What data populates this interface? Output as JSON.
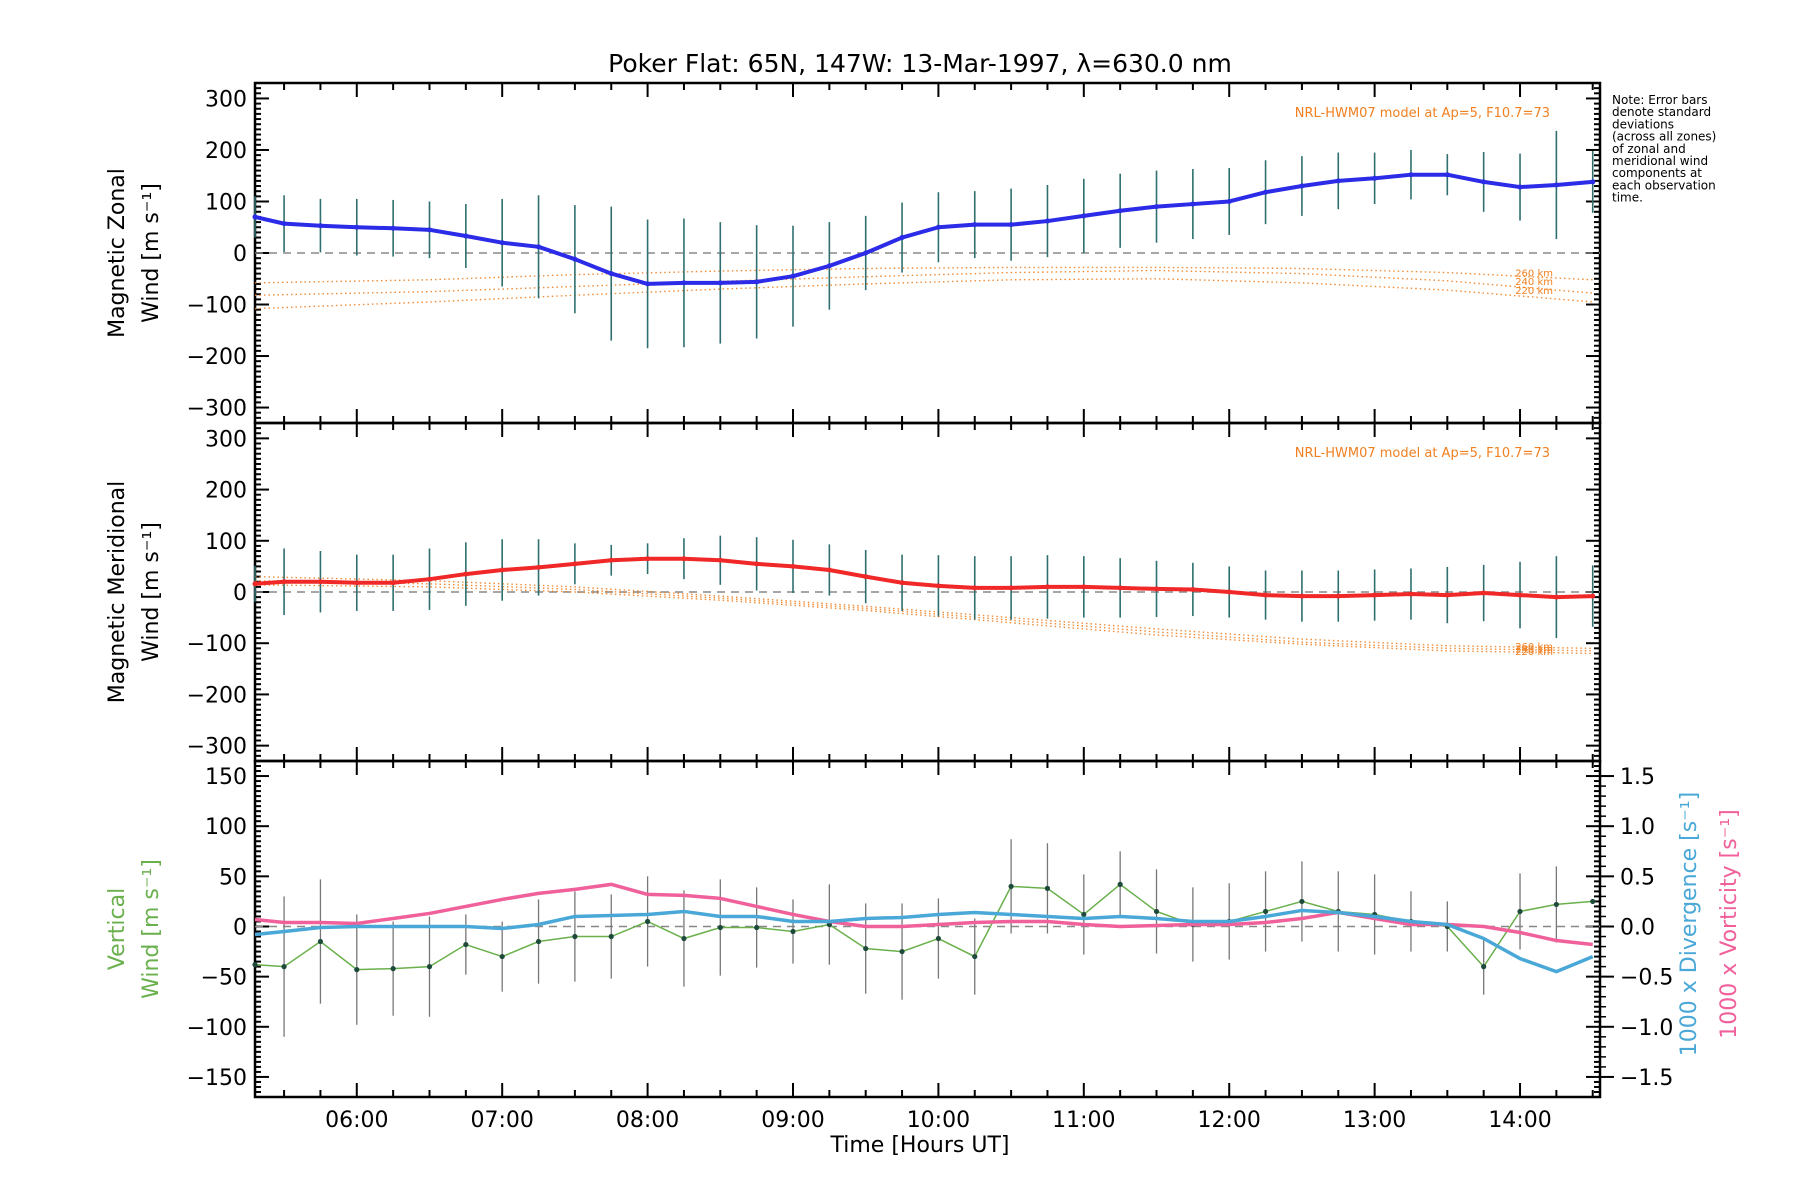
{
  "title": "Poker Flat: 65N, 147W: 13-Mar-1997, λ=630.0 nm",
  "note": [
    "Note: Error bars",
    "denote standard",
    "deviations",
    "(across all zones)",
    "of zonal and",
    "meridional wind",
    "components at",
    "each observation",
    "time."
  ],
  "colors": {
    "zonal": "#2b2be8",
    "meridional": "#f02828",
    "vertical": "#6ab04c",
    "divergence": "#4aa8d8",
    "vorticity": "#f0609a",
    "model": "#f08020",
    "errorbar": "#2f6f6f",
    "zero": "#888888"
  },
  "chart_data": [
    {
      "type": "line",
      "panel": "zonal",
      "ylabel_line1": "Magnetic Zonal",
      "ylabel_line2": "Wind [m s⁻¹]",
      "ylim": [
        -330,
        330
      ],
      "yticks": [
        -300,
        -200,
        -100,
        0,
        100,
        200,
        300
      ],
      "xlim": [
        5.3,
        14.55
      ],
      "model_label": "NRL-HWM07 model at Ap=5, F10.7=73",
      "model_alt_labels": [
        "260 km",
        "240 km",
        "220 km"
      ],
      "x": [
        5.3,
        5.5,
        5.75,
        6.0,
        6.25,
        6.5,
        6.75,
        7.0,
        7.25,
        7.5,
        7.75,
        8.0,
        8.25,
        8.5,
        8.75,
        9.0,
        9.25,
        9.5,
        9.75,
        10.0,
        10.25,
        10.5,
        10.75,
        11.0,
        11.25,
        11.5,
        11.75,
        12.0,
        12.25,
        12.5,
        12.75,
        13.0,
        13.25,
        13.5,
        13.75,
        14.0,
        14.25,
        14.5
      ],
      "values": [
        70,
        57,
        53,
        50,
        48,
        45,
        33,
        20,
        12,
        -12,
        -40,
        -60,
        -58,
        -58,
        -56,
        -45,
        -25,
        0,
        30,
        50,
        55,
        55,
        62,
        72,
        82,
        90,
        95,
        100,
        118,
        130,
        140,
        145,
        152,
        152,
        138,
        128,
        132,
        138
      ],
      "err": [
        40,
        55,
        52,
        55,
        55,
        55,
        62,
        85,
        100,
        105,
        130,
        125,
        125,
        118,
        110,
        98,
        85,
        72,
        68,
        68,
        65,
        70,
        70,
        72,
        72,
        70,
        68,
        65,
        62,
        58,
        55,
        50,
        48,
        40,
        58,
        65,
        105,
        60
      ],
      "model": [
        {
          "x": [
            5.3,
            6.5,
            7.5,
            8.5,
            9.5,
            10.5,
            11.5,
            12.5,
            13.5,
            14.5
          ],
          "values": [
            -58,
            -52,
            -42,
            -35,
            -30,
            -28,
            -28,
            -30,
            -38,
            -52
          ]
        },
        {
          "x": [
            5.3,
            6.5,
            7.5,
            8.5,
            9.5,
            10.5,
            11.5,
            12.5,
            13.5,
            14.5
          ],
          "values": [
            -82,
            -75,
            -65,
            -55,
            -46,
            -38,
            -34,
            -40,
            -54,
            -78
          ]
        },
        {
          "x": [
            5.3,
            6.5,
            7.5,
            8.5,
            9.5,
            10.5,
            11.5,
            12.5,
            13.5,
            14.5
          ],
          "values": [
            -108,
            -95,
            -82,
            -70,
            -60,
            -52,
            -50,
            -58,
            -72,
            -95
          ]
        }
      ]
    },
    {
      "type": "line",
      "panel": "meridional",
      "ylabel_line1": "Magnetic Meridional",
      "ylabel_line2": "Wind [m s⁻¹]",
      "ylim": [
        -330,
        330
      ],
      "yticks": [
        -300,
        -200,
        -100,
        0,
        100,
        200,
        300
      ],
      "xlim": [
        5.3,
        14.55
      ],
      "model_label": "NRL-HWM07 model at Ap=5, F10.7=73",
      "model_alt_labels": [
        "260 km",
        "240 km",
        "220 km"
      ],
      "x": [
        5.3,
        5.5,
        5.75,
        6.0,
        6.25,
        6.5,
        6.75,
        7.0,
        7.25,
        7.5,
        7.75,
        8.0,
        8.25,
        8.5,
        8.75,
        9.0,
        9.25,
        9.5,
        9.75,
        10.0,
        10.25,
        10.5,
        10.75,
        11.0,
        11.25,
        11.5,
        11.75,
        12.0,
        12.25,
        12.5,
        12.75,
        13.0,
        13.25,
        13.5,
        13.75,
        14.0,
        14.25,
        14.5
      ],
      "values": [
        16,
        20,
        20,
        18,
        18,
        25,
        35,
        43,
        48,
        55,
        62,
        65,
        65,
        62,
        55,
        50,
        43,
        30,
        18,
        12,
        8,
        8,
        10,
        10,
        8,
        6,
        5,
        0,
        -6,
        -8,
        -8,
        -6,
        -4,
        -6,
        -2,
        -6,
        -10,
        -8
      ],
      "err": [
        35,
        65,
        60,
        55,
        55,
        60,
        62,
        60,
        55,
        40,
        30,
        30,
        40,
        48,
        52,
        52,
        50,
        52,
        55,
        60,
        62,
        62,
        62,
        60,
        58,
        55,
        52,
        50,
        48,
        50,
        50,
        50,
        50,
        55,
        55,
        65,
        80,
        60
      ],
      "model": [
        {
          "x": [
            5.3,
            6.5,
            7.5,
            8.5,
            9.5,
            10.5,
            11.5,
            12.5,
            13.5,
            14.5
          ],
          "values": [
            30,
            22,
            10,
            -8,
            -28,
            -50,
            -72,
            -92,
            -105,
            -110
          ]
        },
        {
          "x": [
            5.3,
            6.5,
            7.5,
            8.5,
            9.5,
            10.5,
            11.5,
            12.5,
            13.5,
            14.5
          ],
          "values": [
            22,
            16,
            5,
            -12,
            -32,
            -55,
            -78,
            -98,
            -110,
            -115
          ]
        },
        {
          "x": [
            5.3,
            6.5,
            7.5,
            8.5,
            9.5,
            10.5,
            11.5,
            12.5,
            13.5,
            14.5
          ],
          "values": [
            14,
            10,
            0,
            -16,
            -36,
            -60,
            -84,
            -102,
            -115,
            -120
          ]
        }
      ]
    },
    {
      "type": "line",
      "panel": "vertical",
      "ylabel_line1": "Vertical",
      "ylabel_line2": "Wind [m s⁻¹]",
      "ylim": [
        -170,
        165
      ],
      "yticks": [
        -150,
        -100,
        -50,
        0,
        50,
        100,
        150
      ],
      "y2lim": [
        -1.7,
        1.65
      ],
      "y2ticks": [
        -1.5,
        -1.0,
        -0.5,
        0.0,
        0.5,
        1.0,
        1.5
      ],
      "y2ticklabels": [
        "−1.5",
        "−1.0",
        "−0.5",
        "0.0",
        "0.5",
        "1.0",
        "1.5"
      ],
      "y2label_divergence": "1000 x Divergence [s⁻¹]",
      "y2label_vorticity": "1000 x Vorticity [s⁻¹]",
      "xlim": [
        5.3,
        14.55
      ],
      "xticks": [
        6,
        7,
        8,
        9,
        10,
        11,
        12,
        13,
        14
      ],
      "xticklabels": [
        "06:00",
        "07:00",
        "08:00",
        "09:00",
        "10:00",
        "11:00",
        "12:00",
        "13:00",
        "14:00"
      ],
      "xlabel": "Time [Hours UT]",
      "series": [
        {
          "name": "Vertical wind",
          "x": [
            5.3,
            5.5,
            5.75,
            6.0,
            6.25,
            6.5,
            6.75,
            7.0,
            7.25,
            7.5,
            7.75,
            8.0,
            8.25,
            8.5,
            8.75,
            9.0,
            9.25,
            9.5,
            9.75,
            10.0,
            10.25,
            10.5,
            10.75,
            11.0,
            11.25,
            11.5,
            11.75,
            12.0,
            12.25,
            12.5,
            12.75,
            13.0,
            13.25,
            13.5,
            13.75,
            14.0,
            14.25,
            14.5
          ],
          "values": [
            -38,
            -40,
            -15,
            -43,
            -42,
            -40,
            -18,
            -30,
            -15,
            -10,
            -10,
            5,
            -12,
            -1,
            -1,
            -5,
            2,
            -22,
            -25,
            -12,
            -30,
            40,
            38,
            12,
            42,
            15,
            2,
            5,
            15,
            25,
            15,
            12,
            5,
            0,
            -40,
            15,
            22,
            25
          ],
          "err": [
            0,
            70,
            62,
            55,
            47,
            50,
            30,
            35,
            42,
            45,
            42,
            45,
            48,
            48,
            40,
            32,
            40,
            45,
            48,
            40,
            38,
            47,
            45,
            40,
            33,
            42,
            37,
            38,
            40,
            40,
            40,
            40,
            30,
            25,
            28,
            38,
            38,
            0
          ]
        },
        {
          "name": "1000 x Divergence",
          "axis": "right",
          "x": [
            5.3,
            5.5,
            5.75,
            6.0,
            6.25,
            6.5,
            6.75,
            7.0,
            7.25,
            7.5,
            7.75,
            8.0,
            8.25,
            8.5,
            8.75,
            9.0,
            9.25,
            9.5,
            9.75,
            10.0,
            10.25,
            10.5,
            10.75,
            11.0,
            11.25,
            11.5,
            11.75,
            12.0,
            12.25,
            12.5,
            12.75,
            13.0,
            13.25,
            13.5,
            13.75,
            14.0,
            14.25,
            14.5
          ],
          "values": [
            -0.08,
            -0.05,
            -0.01,
            0.0,
            0.0,
            0.0,
            0.0,
            -0.02,
            0.02,
            0.1,
            0.11,
            0.12,
            0.15,
            0.1,
            0.1,
            0.05,
            0.05,
            0.08,
            0.09,
            0.12,
            0.14,
            0.12,
            0.1,
            0.08,
            0.1,
            0.08,
            0.05,
            0.05,
            0.1,
            0.16,
            0.14,
            0.1,
            0.05,
            0.02,
            -0.12,
            -0.32,
            -0.45,
            -0.3
          ]
        },
        {
          "name": "1000 x Vorticity",
          "axis": "right",
          "x": [
            5.3,
            5.5,
            5.75,
            6.0,
            6.25,
            6.5,
            6.75,
            7.0,
            7.25,
            7.5,
            7.75,
            8.0,
            8.25,
            8.5,
            8.75,
            9.0,
            9.25,
            9.5,
            9.75,
            10.0,
            10.25,
            10.5,
            10.75,
            11.0,
            11.25,
            11.5,
            11.75,
            12.0,
            12.25,
            12.5,
            12.75,
            13.0,
            13.25,
            13.5,
            13.75,
            14.0,
            14.25,
            14.5
          ],
          "values": [
            0.07,
            0.04,
            0.04,
            0.03,
            0.08,
            0.13,
            0.2,
            0.27,
            0.33,
            0.37,
            0.42,
            0.32,
            0.31,
            0.28,
            0.2,
            0.12,
            0.05,
            0.0,
            0.0,
            0.02,
            0.04,
            0.05,
            0.05,
            0.02,
            0.0,
            0.01,
            0.02,
            0.02,
            0.04,
            0.08,
            0.14,
            0.08,
            0.02,
            0.02,
            0.0,
            -0.06,
            -0.14,
            -0.18
          ]
        }
      ]
    }
  ]
}
